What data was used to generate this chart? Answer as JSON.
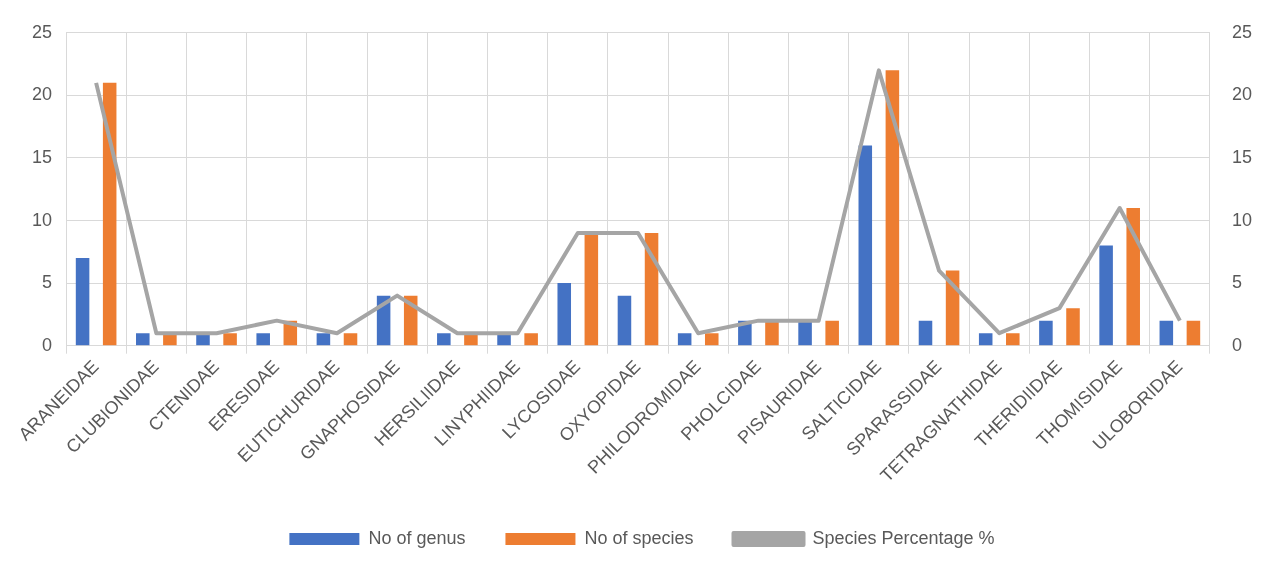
{
  "chart_data": {
    "type": "bar",
    "categories": [
      "ARANEIDAE",
      "CLUBIONIDAE",
      "CTENIDAE",
      "ERESIDAE",
      "EUTICHURIDAE",
      "GNAPHOSIDAE",
      "HERSILIIDAE",
      "LINYPHIIDAE",
      "LYCOSIDAE",
      "OXYOPIDAE",
      "PHILODROMIDAE",
      "PHOLCIDAE",
      "PISAURIDAE",
      "SALTICIDAE",
      "SPARASSIDAE",
      "TETRAGNATHIDAE",
      "THERIDIIDAE",
      "THOMISIDAE",
      "ULOBORIDAE"
    ],
    "series": [
      {
        "name": "No of genus",
        "color": "#4472c4",
        "values": [
          7,
          1,
          1,
          1,
          1,
          4,
          1,
          1,
          5,
          4,
          1,
          2,
          2,
          16,
          2,
          1,
          2,
          8,
          2
        ]
      },
      {
        "name": "No of species",
        "color": "#ed7d31",
        "values": [
          21,
          1,
          1,
          2,
          1,
          4,
          1,
          1,
          9,
          9,
          1,
          2,
          2,
          22,
          6,
          1,
          3,
          11,
          2
        ]
      },
      {
        "name": "Species Percentage %",
        "type": "line",
        "axis": "y2",
        "color": "#a5a5a5",
        "values": [
          21,
          1,
          1,
          2,
          1,
          4,
          1,
          1,
          9,
          9,
          1,
          2,
          2,
          22,
          6,
          1,
          3,
          11,
          2
        ]
      }
    ],
    "ylim": [
      0,
      25
    ],
    "yticks": [
      0,
      5,
      10,
      15,
      20,
      25
    ],
    "y2lim": [
      0,
      25
    ],
    "y2ticks": [
      0,
      5,
      10,
      15,
      20,
      25
    ],
    "grid": true,
    "legend": "bottom",
    "marker": "none",
    "line_style": "solid"
  }
}
